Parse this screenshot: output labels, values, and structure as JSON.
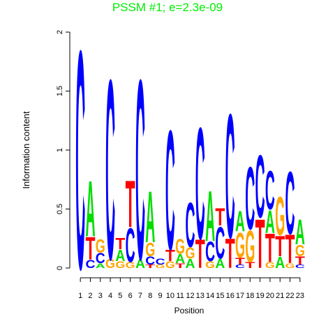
{
  "chart_data": {
    "type": "logo",
    "title": "PSSM #1; e=2.3e-09",
    "title_color": "#00ee00",
    "x_label": "Position",
    "y_label": "Information content",
    "xlim": [
      0.5,
      23.5
    ],
    "xticks": [
      1,
      2,
      3,
      4,
      5,
      6,
      7,
      8,
      9,
      10,
      11,
      12,
      13,
      14,
      15,
      16,
      17,
      18,
      19,
      20,
      21,
      22,
      23
    ],
    "ylim": [
      0,
      2
    ],
    "yticks": [
      0,
      0.5,
      1,
      1.5,
      2
    ],
    "colors": {
      "A": "#00dd00",
      "C": "#0000ff",
      "G": "#ffa500",
      "T": "#ff0000"
    },
    "stacks": [
      [
        {
          "letter": "C",
          "height": 1.92
        }
      ],
      [
        {
          "letter": "C",
          "height": 0.07
        },
        {
          "letter": "T",
          "height": 0.2
        },
        {
          "letter": "A",
          "height": 0.49
        }
      ],
      [
        {
          "letter": "A",
          "height": 0.04
        },
        {
          "letter": "C",
          "height": 0.09
        },
        {
          "letter": "G",
          "height": 0.12
        }
      ],
      [
        {
          "letter": "G",
          "height": 0.08
        },
        {
          "letter": "C",
          "height": 1.58
        }
      ],
      [
        {
          "letter": "G",
          "height": 0.06
        },
        {
          "letter": "A",
          "height": 0.1
        },
        {
          "letter": "T",
          "height": 0.1
        }
      ],
      [
        {
          "letter": "G",
          "height": 0.05
        },
        {
          "letter": "C",
          "height": 0.3
        },
        {
          "letter": "T",
          "height": 0.41
        }
      ],
      [
        {
          "letter": "A",
          "height": 0.08
        },
        {
          "letter": "C",
          "height": 1.58
        }
      ],
      [
        {
          "letter": "T",
          "height": 0.03
        },
        {
          "letter": "C",
          "height": 0.07
        },
        {
          "letter": "G",
          "height": 0.12
        },
        {
          "letter": "A",
          "height": 0.45
        }
      ],
      [
        {
          "letter": "G",
          "height": 0.03
        },
        {
          "letter": "C",
          "height": 0.05
        }
      ],
      [
        {
          "letter": "G",
          "height": 0.06
        },
        {
          "letter": "T",
          "height": 0.1
        },
        {
          "letter": "C",
          "height": 1.05
        }
      ],
      [
        {
          "letter": "T",
          "height": 0.04
        },
        {
          "letter": "A",
          "height": 0.08
        },
        {
          "letter": "G",
          "height": 0.13
        }
      ],
      [
        {
          "letter": "A",
          "height": 0.08
        },
        {
          "letter": "G",
          "height": 0.1
        },
        {
          "letter": "C",
          "height": 0.39
        }
      ],
      [
        {
          "letter": "T",
          "height": 0.25
        },
        {
          "letter": "C",
          "height": 0.98
        }
      ],
      [
        {
          "letter": "G",
          "height": 0.06
        },
        {
          "letter": "C",
          "height": 0.17
        },
        {
          "letter": "A",
          "height": 0.44
        }
      ],
      [
        {
          "letter": "A",
          "height": 0.08
        },
        {
          "letter": "C",
          "height": 0.28
        },
        {
          "letter": "T",
          "height": 0.15
        }
      ],
      [
        {
          "letter": "T",
          "height": 0.26
        },
        {
          "letter": "C",
          "height": 1.09
        }
      ],
      [
        {
          "letter": "C",
          "height": 0.03
        },
        {
          "letter": "T",
          "height": 0.06
        },
        {
          "letter": "G",
          "height": 0.22
        },
        {
          "letter": "A",
          "height": 0.18
        }
      ],
      [
        {
          "letter": "T",
          "height": 0.05
        },
        {
          "letter": "G",
          "height": 0.28
        },
        {
          "letter": "C",
          "height": 0.55
        }
      ],
      [
        {
          "letter": "T",
          "height": 0.43
        },
        {
          "letter": "C",
          "height": 0.55
        }
      ],
      [
        {
          "letter": "G",
          "height": 0.05
        },
        {
          "letter": "T",
          "height": 0.25
        },
        {
          "letter": "A",
          "height": 0.2
        },
        {
          "letter": "C",
          "height": 0.34
        }
      ],
      [
        {
          "letter": "A",
          "height": 0.1
        },
        {
          "letter": "T",
          "height": 0.18
        },
        {
          "letter": "G",
          "height": 0.34
        }
      ],
      [
        {
          "letter": "G",
          "height": 0.04
        },
        {
          "letter": "T",
          "height": 0.25
        },
        {
          "letter": "C",
          "height": 0.55
        }
      ],
      [
        {
          "letter": "C",
          "height": 0.03
        },
        {
          "letter": "T",
          "height": 0.07
        },
        {
          "letter": "G",
          "height": 0.1
        },
        {
          "letter": "A",
          "height": 0.22
        }
      ]
    ]
  }
}
